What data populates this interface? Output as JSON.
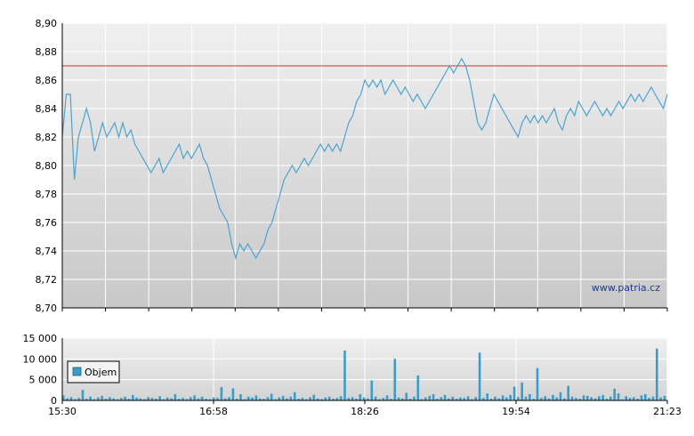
{
  "chart_data": [
    {
      "type": "line",
      "ylim": [
        8.7,
        8.9
      ],
      "y_ticks": [
        "8,90",
        "8,88",
        "8,86",
        "8,84",
        "8,82",
        "8,80",
        "8,78",
        "8,76",
        "8,74",
        "8,72",
        "8,70"
      ],
      "x_ticks": [
        "15:30",
        "16:58",
        "18:26",
        "19:54",
        "21:23"
      ],
      "reference_line": 8.87,
      "watermark": "www.patria.cz",
      "grid": true,
      "colors": {
        "line": "#4aa3d0",
        "reference": "#c0392b",
        "bg_top": "#efefef",
        "bg_bottom": "#c9c9c9"
      },
      "series": [
        {
          "points": [
            [
              0,
              8.82
            ],
            [
              1,
              8.85
            ],
            [
              2,
              8.85
            ],
            [
              3,
              8.79
            ],
            [
              4,
              8.82
            ],
            [
              5,
              8.83
            ],
            [
              6,
              8.84
            ],
            [
              7,
              8.83
            ],
            [
              8,
              8.81
            ],
            [
              9,
              8.82
            ],
            [
              10,
              8.83
            ],
            [
              11,
              8.82
            ],
            [
              12,
              8.825
            ],
            [
              13,
              8.83
            ],
            [
              14,
              8.82
            ],
            [
              15,
              8.83
            ],
            [
              16,
              8.82
            ],
            [
              17,
              8.825
            ],
            [
              18,
              8.815
            ],
            [
              19,
              8.81
            ],
            [
              20,
              8.805
            ],
            [
              21,
              8.8
            ],
            [
              22,
              8.795
            ],
            [
              23,
              8.8
            ],
            [
              24,
              8.805
            ],
            [
              25,
              8.795
            ],
            [
              26,
              8.8
            ],
            [
              27,
              8.805
            ],
            [
              28,
              8.81
            ],
            [
              29,
              8.815
            ],
            [
              30,
              8.805
            ],
            [
              31,
              8.81
            ],
            [
              32,
              8.805
            ],
            [
              33,
              8.81
            ],
            [
              34,
              8.815
            ],
            [
              35,
              8.805
            ],
            [
              36,
              8.8
            ],
            [
              37,
              8.79
            ],
            [
              38,
              8.78
            ],
            [
              39,
              8.77
            ],
            [
              40,
              8.765
            ],
            [
              41,
              8.76
            ],
            [
              42,
              8.745
            ],
            [
              43,
              8.735
            ],
            [
              44,
              8.745
            ],
            [
              45,
              8.74
            ],
            [
              46,
              8.745
            ],
            [
              47,
              8.74
            ],
            [
              48,
              8.735
            ],
            [
              49,
              8.74
            ],
            [
              50,
              8.745
            ],
            [
              51,
              8.755
            ],
            [
              52,
              8.76
            ],
            [
              53,
              8.77
            ],
            [
              54,
              8.78
            ],
            [
              55,
              8.79
            ],
            [
              56,
              8.795
            ],
            [
              57,
              8.8
            ],
            [
              58,
              8.795
            ],
            [
              59,
              8.8
            ],
            [
              60,
              8.805
            ],
            [
              61,
              8.8
            ],
            [
              62,
              8.805
            ],
            [
              63,
              8.81
            ],
            [
              64,
              8.815
            ],
            [
              65,
              8.81
            ],
            [
              66,
              8.815
            ],
            [
              67,
              8.81
            ],
            [
              68,
              8.815
            ],
            [
              69,
              8.81
            ],
            [
              70,
              8.82
            ],
            [
              71,
              8.83
            ],
            [
              72,
              8.835
            ],
            [
              73,
              8.845
            ],
            [
              74,
              8.85
            ],
            [
              75,
              8.86
            ],
            [
              76,
              8.855
            ],
            [
              77,
              8.86
            ],
            [
              78,
              8.855
            ],
            [
              79,
              8.86
            ],
            [
              80,
              8.85
            ],
            [
              81,
              8.855
            ],
            [
              82,
              8.86
            ],
            [
              83,
              8.855
            ],
            [
              84,
              8.85
            ],
            [
              85,
              8.855
            ],
            [
              86,
              8.85
            ],
            [
              87,
              8.845
            ],
            [
              88,
              8.85
            ],
            [
              89,
              8.845
            ],
            [
              90,
              8.84
            ],
            [
              91,
              8.845
            ],
            [
              92,
              8.85
            ],
            [
              93,
              8.855
            ],
            [
              94,
              8.86
            ],
            [
              95,
              8.865
            ],
            [
              96,
              8.87
            ],
            [
              97,
              8.865
            ],
            [
              98,
              8.87
            ],
            [
              99,
              8.875
            ],
            [
              100,
              8.87
            ],
            [
              101,
              8.86
            ],
            [
              102,
              8.845
            ],
            [
              103,
              8.83
            ],
            [
              104,
              8.825
            ],
            [
              105,
              8.83
            ],
            [
              106,
              8.84
            ],
            [
              107,
              8.85
            ],
            [
              108,
              8.845
            ],
            [
              109,
              8.84
            ],
            [
              110,
              8.835
            ],
            [
              111,
              8.83
            ],
            [
              112,
              8.825
            ],
            [
              113,
              8.82
            ],
            [
              114,
              8.83
            ],
            [
              115,
              8.835
            ],
            [
              116,
              8.83
            ],
            [
              117,
              8.835
            ],
            [
              118,
              8.83
            ],
            [
              119,
              8.835
            ],
            [
              120,
              8.83
            ],
            [
              121,
              8.835
            ],
            [
              122,
              8.84
            ],
            [
              123,
              8.83
            ],
            [
              124,
              8.825
            ],
            [
              125,
              8.835
            ],
            [
              126,
              8.84
            ],
            [
              127,
              8.835
            ],
            [
              128,
              8.845
            ],
            [
              129,
              8.84
            ],
            [
              130,
              8.835
            ],
            [
              131,
              8.84
            ],
            [
              132,
              8.845
            ],
            [
              133,
              8.84
            ],
            [
              134,
              8.835
            ],
            [
              135,
              8.84
            ],
            [
              136,
              8.835
            ],
            [
              137,
              8.84
            ],
            [
              138,
              8.845
            ],
            [
              139,
              8.84
            ],
            [
              140,
              8.845
            ],
            [
              141,
              8.85
            ],
            [
              142,
              8.845
            ],
            [
              143,
              8.85
            ],
            [
              144,
              8.845
            ],
            [
              145,
              8.85
            ],
            [
              146,
              8.855
            ],
            [
              147,
              8.85
            ],
            [
              148,
              8.845
            ],
            [
              149,
              8.84
            ],
            [
              150,
              8.85
            ]
          ]
        }
      ]
    },
    {
      "type": "bar",
      "ylim": [
        0,
        15000
      ],
      "y_ticks": [
        "15 000",
        "10 000",
        "5 000",
        "0"
      ],
      "x_ticks": [
        "15:30",
        "16:58",
        "18:26",
        "19:54",
        "21:23"
      ],
      "grid": true,
      "colors": {
        "bar": "#3c9cc8"
      },
      "series": [
        {
          "name": "Objem",
          "values": [
            1200,
            500,
            800,
            300,
            600,
            2500,
            400,
            900,
            300,
            700,
            1100,
            400,
            800,
            500,
            300,
            600,
            900,
            400,
            1300,
            700,
            500,
            300,
            800,
            600,
            400,
            1000,
            300,
            700,
            500,
            1500,
            400,
            600,
            300,
            800,
            1200,
            500,
            900,
            400,
            300,
            700,
            600,
            3200,
            500,
            800,
            2900,
            400,
            1500,
            300,
            900,
            700,
            1200,
            500,
            400,
            800,
            1600,
            300,
            700,
            1100,
            500,
            900,
            2000,
            400,
            600,
            300,
            800,
            1400,
            500,
            300,
            700,
            900,
            400,
            600,
            1000,
            12000,
            600,
            800,
            400,
            1500,
            700,
            500,
            4800,
            900,
            300,
            600,
            1200,
            400,
            10000,
            700,
            500,
            1800,
            400,
            900,
            6000,
            300,
            700,
            1100,
            1500,
            400,
            800,
            1300,
            500,
            900,
            400,
            700,
            600,
            1000,
            300,
            800,
            11500,
            600,
            1700,
            400,
            900,
            500,
            1200,
            700,
            1300,
            3300,
            800,
            4300,
            900,
            1500,
            400,
            7800,
            600,
            1000,
            500,
            1300,
            700,
            2000,
            500,
            3500,
            900,
            600,
            400,
            1200,
            1100,
            800,
            500,
            1000,
            1300,
            400,
            900,
            2800,
            1700,
            300,
            1000,
            600,
            800,
            400,
            1200,
            1500,
            600,
            900,
            12500,
            700,
            1100
          ]
        }
      ],
      "legend": "Objem",
      "legend_position": "left"
    }
  ]
}
